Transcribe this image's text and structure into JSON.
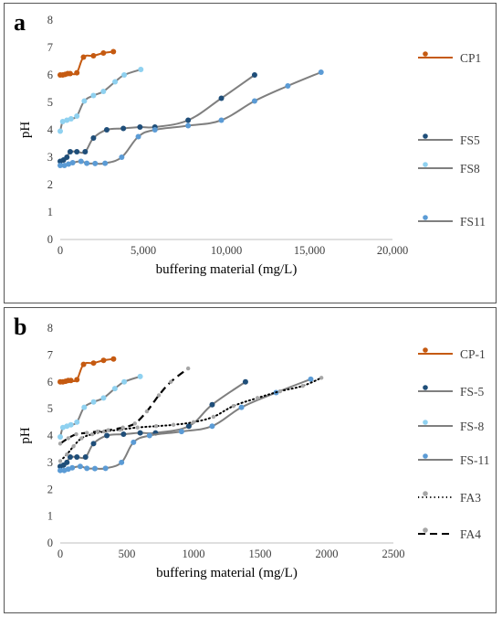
{
  "chart_data": [
    {
      "panel_label": "a",
      "type": "line",
      "xlabel": "buffering material (mg/L)",
      "ylabel": "pH",
      "xlim": [
        0,
        20000
      ],
      "ylim": [
        0,
        8
      ],
      "x_ticks": [
        "0",
        "5,000",
        "10,000",
        "15,000",
        "20,000"
      ],
      "x_tick_values": [
        0,
        5000,
        10000,
        15000,
        20000
      ],
      "y_ticks": [
        "0",
        "1",
        "2",
        "3",
        "4",
        "5",
        "6",
        "7",
        "8"
      ],
      "y_tick_values": [
        0,
        1,
        2,
        3,
        4,
        5,
        6,
        7,
        8
      ],
      "grid": false,
      "legend_position": "right",
      "series": [
        {
          "name": "CP1",
          "color": "#C55A11",
          "marker_color": "#C55A11",
          "dash": "solid",
          "points": [
            [
              0,
              6.0
            ],
            [
              150,
              6.0
            ],
            [
              300,
              6.02
            ],
            [
              450,
              6.05
            ],
            [
              600,
              6.05
            ],
            [
              1000,
              6.08
            ],
            [
              1400,
              6.65
            ],
            [
              2000,
              6.7
            ],
            [
              2600,
              6.8
            ],
            [
              3200,
              6.85
            ]
          ]
        },
        {
          "name": "FS5",
          "color": "#7F7F7F",
          "marker_color": "#1F4E79",
          "dash": "solid",
          "points": [
            [
              0,
              2.85
            ],
            [
              200,
              2.9
            ],
            [
              400,
              3.0
            ],
            [
              600,
              3.2
            ],
            [
              1000,
              3.2
            ],
            [
              1500,
              3.2
            ],
            [
              2000,
              3.7
            ],
            [
              2800,
              4.0
            ],
            [
              3800,
              4.05
            ],
            [
              4800,
              4.1
            ],
            [
              5700,
              4.1
            ],
            [
              7700,
              4.35
            ],
            [
              9700,
              5.15
            ],
            [
              11700,
              6.0
            ]
          ]
        },
        {
          "name": "FS8",
          "color": "#7F7F7F",
          "marker_color": "#8FD1F0",
          "dash": "solid",
          "points": [
            [
              0,
              3.95
            ],
            [
              150,
              4.3
            ],
            [
              400,
              4.35
            ],
            [
              650,
              4.4
            ],
            [
              1000,
              4.5
            ],
            [
              1450,
              5.05
            ],
            [
              2000,
              5.25
            ],
            [
              2600,
              5.4
            ],
            [
              3300,
              5.75
            ],
            [
              3850,
              6.0
            ],
            [
              4850,
              6.2
            ]
          ]
        },
        {
          "name": "FS11",
          "color": "#7F7F7F",
          "marker_color": "#5B9BD5",
          "dash": "solid",
          "points": [
            [
              0,
              2.7
            ],
            [
              250,
              2.7
            ],
            [
              500,
              2.75
            ],
            [
              750,
              2.8
            ],
            [
              1250,
              2.85
            ],
            [
              1600,
              2.78
            ],
            [
              2100,
              2.77
            ],
            [
              2700,
              2.78
            ],
            [
              3700,
              3.0
            ],
            [
              4700,
              3.75
            ],
            [
              5700,
              4.0
            ],
            [
              7700,
              4.15
            ],
            [
              9700,
              4.35
            ],
            [
              11700,
              5.05
            ],
            [
              13700,
              5.6
            ],
            [
              15700,
              6.1
            ]
          ]
        }
      ]
    },
    {
      "panel_label": "b",
      "type": "line",
      "xlabel": "buffering material (mg/L)",
      "ylabel": "pH",
      "xlim": [
        0,
        2500
      ],
      "ylim": [
        0,
        8
      ],
      "x_ticks": [
        "0",
        "500",
        "1000",
        "1500",
        "2000",
        "2500"
      ],
      "x_tick_values": [
        0,
        500,
        1000,
        1500,
        2000,
        2500
      ],
      "y_ticks": [
        "0",
        "1",
        "2",
        "3",
        "4",
        "5",
        "6",
        "7",
        "8"
      ],
      "y_tick_values": [
        0,
        1,
        2,
        3,
        4,
        5,
        6,
        7,
        8
      ],
      "grid": false,
      "legend_position": "right",
      "series": [
        {
          "name": "CP-1",
          "color": "#C55A11",
          "marker_color": "#C55A11",
          "dash": "solid",
          "points": [
            [
              0,
              6.0
            ],
            [
              20,
              6.0
            ],
            [
              40,
              6.02
            ],
            [
              60,
              6.05
            ],
            [
              80,
              6.05
            ],
            [
              125,
              6.08
            ],
            [
              175,
              6.65
            ],
            [
              250,
              6.7
            ],
            [
              325,
              6.8
            ],
            [
              400,
              6.85
            ]
          ]
        },
        {
          "name": "FS-5",
          "color": "#7F7F7F",
          "marker_color": "#1F4E79",
          "dash": "solid",
          "points": [
            [
              0,
              2.85
            ],
            [
              25,
              2.9
            ],
            [
              50,
              3.0
            ],
            [
              75,
              3.2
            ],
            [
              125,
              3.2
            ],
            [
              190,
              3.2
            ],
            [
              250,
              3.7
            ],
            [
              350,
              4.0
            ],
            [
              475,
              4.05
            ],
            [
              600,
              4.1
            ],
            [
              715,
              4.1
            ],
            [
              965,
              4.35
            ],
            [
              1140,
              5.15
            ],
            [
              1390,
              6.0
            ]
          ]
        },
        {
          "name": "FS-8",
          "color": "#7F7F7F",
          "marker_color": "#8FD1F0",
          "dash": "solid",
          "points": [
            [
              0,
              3.95
            ],
            [
              20,
              4.3
            ],
            [
              50,
              4.35
            ],
            [
              80,
              4.4
            ],
            [
              125,
              4.5
            ],
            [
              180,
              5.05
            ],
            [
              250,
              5.25
            ],
            [
              325,
              5.4
            ],
            [
              410,
              5.75
            ],
            [
              480,
              6.0
            ],
            [
              600,
              6.2
            ]
          ]
        },
        {
          "name": "FS-11",
          "color": "#7F7F7F",
          "marker_color": "#5B9BD5",
          "dash": "solid",
          "points": [
            [
              0,
              2.7
            ],
            [
              30,
              2.7
            ],
            [
              60,
              2.75
            ],
            [
              90,
              2.8
            ],
            [
              150,
              2.85
            ],
            [
              200,
              2.78
            ],
            [
              260,
              2.77
            ],
            [
              340,
              2.78
            ],
            [
              460,
              3.0
            ],
            [
              550,
              3.75
            ],
            [
              670,
              4.0
            ],
            [
              910,
              4.15
            ],
            [
              1140,
              4.35
            ],
            [
              1360,
              5.05
            ],
            [
              1620,
              5.6
            ],
            [
              1880,
              6.1
            ]
          ]
        },
        {
          "name": "FA3",
          "color": "#000000",
          "marker_color": "#A6A6A6",
          "dash": "dotted",
          "points": [
            [
              0,
              3.05
            ],
            [
              50,
              3.3
            ],
            [
              100,
              3.6
            ],
            [
              160,
              3.9
            ],
            [
              240,
              4.05
            ],
            [
              330,
              4.15
            ],
            [
              450,
              4.22
            ],
            [
              580,
              4.3
            ],
            [
              720,
              4.35
            ],
            [
              850,
              4.4
            ],
            [
              1000,
              4.5
            ],
            [
              1150,
              4.7
            ],
            [
              1300,
              5.1
            ],
            [
              1480,
              5.4
            ],
            [
              1650,
              5.65
            ],
            [
              1820,
              5.85
            ],
            [
              1960,
              6.15
            ]
          ]
        },
        {
          "name": "FA4",
          "color": "#000000",
          "marker_color": "#A6A6A6",
          "dash": "dashed",
          "points": [
            [
              0,
              3.7
            ],
            [
              60,
              3.9
            ],
            [
              120,
              4.05
            ],
            [
              200,
              4.1
            ],
            [
              280,
              4.15
            ],
            [
              360,
              4.2
            ],
            [
              470,
              4.3
            ],
            [
              560,
              4.45
            ],
            [
              650,
              4.9
            ],
            [
              740,
              5.5
            ],
            [
              830,
              6.0
            ],
            [
              960,
              6.5
            ]
          ]
        }
      ]
    }
  ]
}
